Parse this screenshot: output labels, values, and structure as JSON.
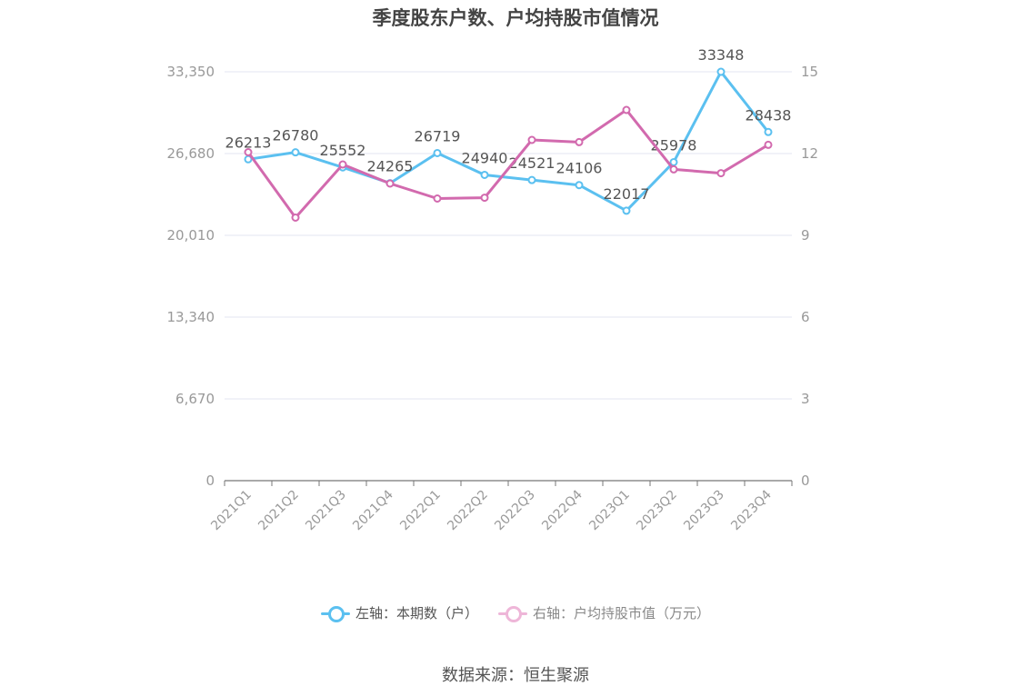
{
  "chart_data": {
    "type": "line",
    "title": "季度股东户数、户均持股市值情况",
    "categories": [
      "2021Q1",
      "2021Q2",
      "2021Q3",
      "2021Q4",
      "2022Q1",
      "2022Q2",
      "2022Q3",
      "2022Q4",
      "2023Q1",
      "2023Q2",
      "2023Q3",
      "2023Q4"
    ],
    "left_axis": {
      "ticks": [
        "0",
        "6,670",
        "13,340",
        "20,010",
        "26,680",
        "33,350"
      ],
      "ylim": [
        0,
        33350
      ]
    },
    "right_axis": {
      "ticks": [
        "0",
        "3",
        "6",
        "9",
        "12",
        "15"
      ],
      "ylim": [
        0,
        15
      ]
    },
    "grid": true,
    "legend_position": "bottom",
    "series": [
      {
        "name": "左轴：本期数（户）",
        "axis": "left",
        "color": "#5bc0f0",
        "values": [
          26213,
          26780,
          25552,
          24265,
          26719,
          24940,
          24521,
          24106,
          22017,
          25978,
          33348,
          28438
        ],
        "labels": [
          "26213",
          "26780",
          "25552",
          "24265",
          "26719",
          "24940",
          "24521",
          "24106",
          "22017",
          "25978",
          "33348",
          "28438"
        ]
      },
      {
        "name": "右轴：户均持股市值（万元）",
        "axis": "right",
        "color": "#d26aae",
        "values": [
          12.05,
          9.65,
          11.6,
          10.9,
          10.35,
          10.38,
          12.5,
          12.42,
          13.6,
          11.42,
          11.28,
          12.32
        ]
      }
    ]
  },
  "source": "数据来源：恒生聚源"
}
